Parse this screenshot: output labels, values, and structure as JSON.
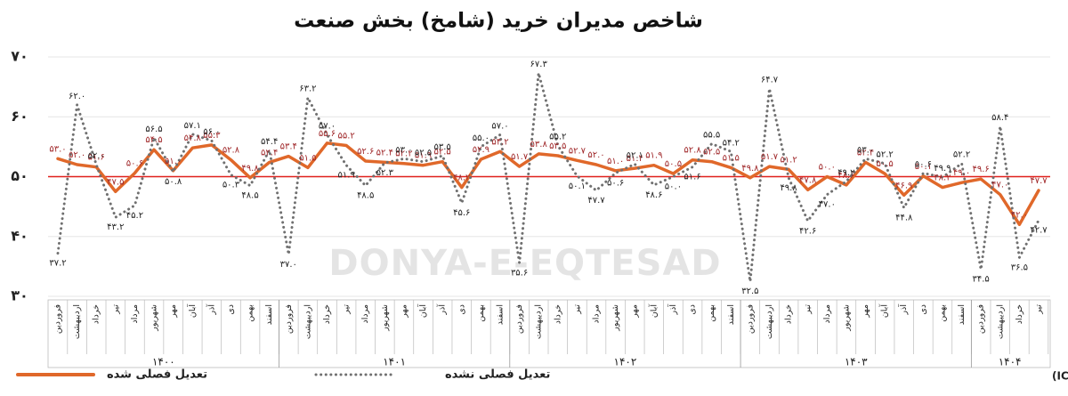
{
  "chart_data": {
    "type": "line",
    "title": "شاخص مدیران خرید (شامخ) بخش صنعت",
    "watermark": "DONYA-E-EQTESAD",
    "source": "منبع: اتاق بازرگانی، صنایع، معادن و کشاورزی ایران (ICCIMA)",
    "categories": [
      "فروردین",
      "اردیبهشت",
      "خرداد",
      "تیر",
      "مرداد",
      "شهریور",
      "مهر",
      "آبان",
      "آذر",
      "دی",
      "بهمن",
      "اسفند",
      "فروردین",
      "اردیبهشت",
      "خرداد",
      "تیر",
      "مرداد",
      "شهریور",
      "مهر",
      "آبان",
      "آذر",
      "دی",
      "بهمن",
      "اسفند",
      "فروردین",
      "اردیبهشت",
      "خرداد",
      "تیر",
      "مرداد",
      "شهریور",
      "مهر",
      "آبان",
      "آذر",
      "دی",
      "بهمن",
      "اسفند",
      "فروردین",
      "اردیبهشت",
      "خرداد",
      "تیر",
      "مرداد",
      "شهریور",
      "مهر",
      "آبان",
      "آذر",
      "دی",
      "بهمن",
      "اسفند",
      "فروردین",
      "اردیبهشت",
      "خرداد",
      "تیر"
    ],
    "years": [
      "۱۴۰۰",
      "۱۴۰۱",
      "۱۴۰۲",
      "۱۴۰۳",
      "۱۴۰۴"
    ],
    "ylim": [
      30,
      70
    ],
    "yticks": [
      {
        "value": 30,
        "label": "۳۰"
      },
      {
        "value": 40,
        "label": "۴۰"
      },
      {
        "value": 50,
        "label": "۵۰"
      },
      {
        "value": 60,
        "label": "۶۰"
      },
      {
        "value": 70,
        "label": "۷۰"
      }
    ],
    "grid": true,
    "reference_line": {
      "value": 50,
      "color": "#e0201b"
    },
    "series": [
      {
        "name": "تعدیل فصلی شده",
        "color": "#e0682a",
        "style": "solid",
        "values": [
          53.0,
          52.0,
          51.6,
          47.5,
          50.6,
          54.5,
          51.0,
          54.8,
          55.3,
          52.8,
          49.8,
          52.4,
          53.4,
          51.5,
          55.6,
          55.2,
          52.6,
          52.4,
          52.2,
          51.9,
          52.5,
          48.2,
          52.9,
          54.2,
          51.7,
          53.8,
          53.5,
          52.7,
          52.0,
          51.0,
          51.4,
          51.9,
          50.5,
          52.8,
          52.5,
          51.5,
          49.8,
          51.7,
          51.2,
          47.8,
          50.0,
          48.6,
          52.4,
          50.5,
          46.9,
          50.1,
          48.2,
          49.0,
          49.6,
          47.0,
          42.0,
          47.7
        ],
        "value_labels": [
          "۵۳.۰",
          "۵۲.۰",
          "۵۱.۶",
          "۴۷.۵",
          "۵۰.۶",
          "۵۴.۵",
          "۵۱.۰",
          "۵۴.۸",
          "۵۵.۳",
          "۵۲.۸",
          "۴۹.۸",
          "۵۲.۴",
          "۵۳.۴",
          "۵۱.۵",
          "۵۵.۶",
          "۵۵.۲",
          "۵۲.۶",
          "۵۲.۴",
          "۵۲.۲",
          "۵۱.۹",
          "۵۲.۵",
          "۴۸.۲",
          "۵۲.۹",
          "۵۴.۲",
          "۵۱.۷",
          "۵۳.۸",
          "۵۳.۵",
          "۵۲.۷",
          "۵۲.۰",
          "۵۱.۰",
          "۵۱.۴",
          "۵۱.۹",
          "۵۰.۵",
          "۵۲.۸",
          "۵۲.۵",
          "۵۱.۵",
          "۴۹.۸",
          "۵۱.۷",
          "۵۱.۲",
          "۴۷.۸",
          "۵۰.۰",
          "۴۸.۶",
          "۵۲.۴",
          "۵۰.۵",
          "۴۶.۹",
          "۵۰.۱",
          "۴۸.۲",
          "۴۹.۰",
          "۴۹.۶",
          "۴۷.۰",
          "۴۲.۰",
          "۴۷.۷"
        ]
      },
      {
        "name": "تعدیل فصلی نشده",
        "color": "#707070",
        "style": "dotted",
        "values": [
          37.2,
          62.0,
          52.0,
          43.2,
          45.2,
          56.5,
          50.8,
          57.1,
          56.0,
          50.3,
          48.5,
          54.4,
          37.0,
          63.2,
          57.0,
          51.9,
          48.5,
          52.3,
          53.0,
          52.5,
          53.5,
          45.6,
          55.0,
          57.0,
          35.6,
          67.3,
          55.2,
          50.1,
          47.7,
          50.6,
          52.1,
          48.6,
          50.0,
          51.6,
          55.5,
          54.2,
          32.5,
          64.7,
          49.8,
          42.6,
          47.0,
          49.2,
          53.0,
          52.2,
          44.8,
          50.6,
          49.9,
          52.2,
          34.5,
          58.4,
          36.5,
          42.7
        ],
        "value_labels": [
          "۳۷.۲",
          "۶۲.۰",
          "۵۲.۰",
          "۴۳.۲",
          "۴۵.۲",
          "۵۶.۵",
          "۵۰.۸",
          "۵۷.۱",
          "۵۶.۰",
          "۵۰.۳",
          "۴۸.۵",
          "۵۴.۴",
          "۳۷.۰",
          "۶۳.۲",
          "۵۷.۰",
          "۵۱.۹",
          "۴۸.۵",
          "۵۲.۳",
          "۵۳.۰",
          "۵۲.۵",
          "۵۳.۵",
          "۴۵.۶",
          "۵۵.۰",
          "۵۷.۰",
          "۳۵.۶",
          "۶۷.۳",
          "۵۵.۲",
          "۵۰.۱",
          "۴۷.۷",
          "۵۰.۶",
          "۵۲.۱",
          "۴۸.۶",
          "۵۰.۰",
          "۵۱.۶",
          "۵۵.۵",
          "۵۴.۲",
          "۳۲.۵",
          "۶۴.۷",
          "۴۹.۸",
          "۴۲.۶",
          "۴۷.۰",
          "۴۹.۲",
          "۵۳.۰",
          "۵۲.۲",
          "۴۴.۸",
          "۵۰.۶",
          "۴۹.۹",
          "۵۲.۲",
          "۳۴.۵",
          "۵۸.۴",
          "۳۶.۵",
          "۴۲.۷"
        ]
      }
    ]
  }
}
